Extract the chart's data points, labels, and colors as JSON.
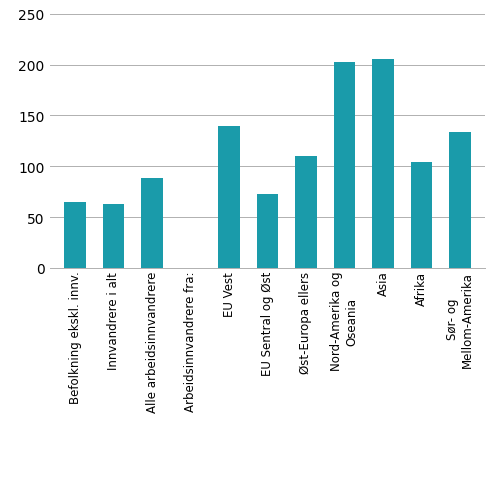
{
  "categories": [
    "Befolkning ekskl. innv.",
    "Innvandrere i alt",
    "Alle arbeidsinnvandrere",
    "Arbeidsinnvandrere fra:",
    "EU Vest",
    "EU Sentral og Øst",
    "Øst-Europa ellers",
    "Nord-Amerika og\nOseania",
    "Asia",
    "Afrika",
    "Sør- og\nMellom-Amerika"
  ],
  "values": [
    65,
    63,
    88,
    null,
    140,
    73,
    110,
    202,
    205,
    104,
    134
  ],
  "bar_color": "#1a9baa",
  "ylim": [
    0,
    250
  ],
  "yticks": [
    0,
    50,
    100,
    150,
    200,
    250
  ],
  "ytick_labels": [
    "0",
    "50",
    "100",
    "150",
    "200",
    "250"
  ],
  "background_color": "#ffffff",
  "grid_color": "#b0b0b0",
  "tick_fontsize": 10,
  "label_fontsize": 8.5,
  "bar_width": 0.55
}
